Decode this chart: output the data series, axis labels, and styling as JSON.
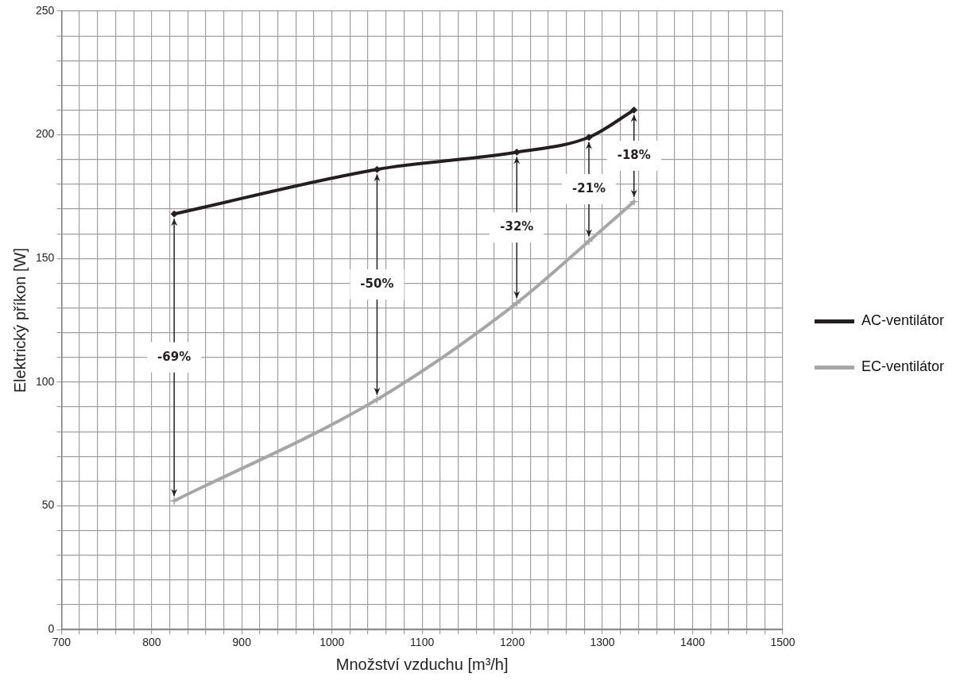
{
  "chart_data": {
    "type": "line",
    "xlabel": "Množství vzduchu [m³/h]",
    "ylabel": "Elektrický příkon [W]",
    "x": [
      825,
      1050,
      1205,
      1285,
      1335
    ],
    "series": [
      {
        "name": "AC-ventilátor",
        "color": "#231f20",
        "values": [
          168,
          186,
          193,
          199,
          210
        ],
        "marker": "diamond"
      },
      {
        "name": "EC-ventilátor",
        "color": "#a6a6a6",
        "values": [
          52,
          93,
          132,
          157,
          173
        ],
        "marker": "cross"
      }
    ],
    "xlim": [
      700,
      1500
    ],
    "xticks": [
      700,
      {
        "value": 720,
        "label": null
      },
      {
        "value": 740,
        "label": null
      },
      {
        "value": 760,
        "label": null
      },
      {
        "value": 780,
        "label": null
      },
      800,
      {
        "value": 820,
        "label": null
      },
      {
        "value": 840,
        "label": null
      },
      {
        "value": 860,
        "label": null
      },
      {
        "value": 880,
        "label": null
      },
      900,
      {
        "value": 920,
        "label": null
      },
      {
        "value": 940,
        "label": null
      },
      {
        "value": 960,
        "label": null
      },
      {
        "value": 980,
        "label": null
      },
      1000,
      {
        "value": 1020,
        "label": null
      },
      {
        "value": 1040,
        "label": null
      },
      {
        "value": 1060,
        "label": null
      },
      {
        "value": 1080,
        "label": null
      },
      1100,
      {
        "value": 1120,
        "label": null
      },
      {
        "value": 1140,
        "label": null
      },
      {
        "value": 1160,
        "label": null
      },
      {
        "value": 1180,
        "label": null
      },
      1200,
      {
        "value": 1220,
        "label": null
      },
      {
        "value": 1240,
        "label": null
      },
      {
        "value": 1260,
        "label": null
      },
      {
        "value": 1280,
        "label": null
      },
      1300,
      {
        "value": 1320,
        "label": null
      },
      {
        "value": 1340,
        "label": null
      },
      {
        "value": 1360,
        "label": null
      },
      {
        "value": 1380,
        "label": null
      },
      1400,
      {
        "value": 1420,
        "label": null
      },
      {
        "value": 1440,
        "label": null
      },
      {
        "value": 1460,
        "label": null
      },
      {
        "value": 1480,
        "label": null
      },
      1500
    ],
    "ylim": [
      0,
      250
    ],
    "yticks": [
      0,
      {
        "value": 10,
        "label": null
      },
      {
        "value": 20,
        "label": null
      },
      {
        "value": 30,
        "label": null
      },
      {
        "value": 40,
        "label": null
      },
      50,
      {
        "value": 60,
        "label": null
      },
      {
        "value": 70,
        "label": null
      },
      {
        "value": 80,
        "label": null
      },
      {
        "value": 90,
        "label": null
      },
      100,
      {
        "value": 110,
        "label": null
      },
      {
        "value": 120,
        "label": null
      },
      {
        "value": 130,
        "label": null
      },
      {
        "value": 140,
        "label": null
      },
      150,
      {
        "value": 160,
        "label": null
      },
      {
        "value": 170,
        "label": null
      },
      {
        "value": 180,
        "label": null
      },
      {
        "value": 190,
        "label": null
      },
      200,
      {
        "value": 210,
        "label": null
      },
      {
        "value": 220,
        "label": null
      },
      {
        "value": 230,
        "label": null
      },
      {
        "value": 240,
        "label": null
      },
      250
    ],
    "grid": true,
    "legend": "right",
    "annotations": [
      "-69%",
      "-50%",
      "-32%",
      "-21%",
      "-18%"
    ]
  }
}
